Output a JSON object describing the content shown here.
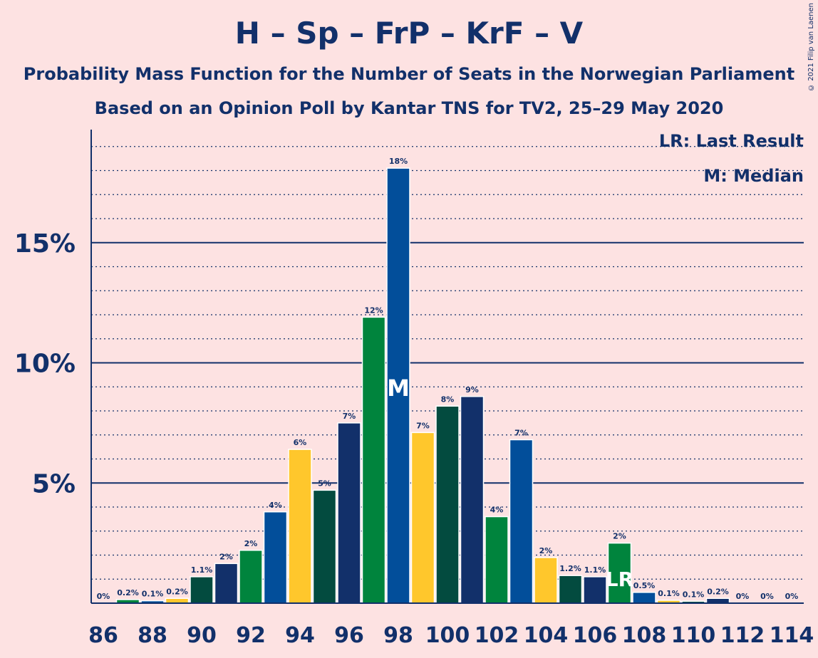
{
  "title": "H – Sp – FrP – KrF – V",
  "subtitle1": "Probability Mass Function for the Number of Seats in the Norwegian Parliament",
  "subtitle2": "Based on an Opinion Poll by Kantar TNS for TV2, 25–29 May 2020",
  "copyright": "© 2021 Filip van Laenen",
  "legend": {
    "last_result": "LR: Last Result",
    "median": "M: Median"
  },
  "colors": {
    "background": "#fde2e2",
    "text": "#12306a",
    "party_colors": [
      "#12306a",
      "#00843d",
      "#024e9a",
      "#ffc72c",
      "#034b3f"
    ]
  },
  "chart_data": {
    "type": "bar",
    "x": [
      86,
      87,
      88,
      89,
      90,
      91,
      92,
      93,
      94,
      95,
      96,
      97,
      98,
      99,
      100,
      101,
      102,
      103,
      104,
      105,
      106,
      107,
      108,
      109,
      110,
      111,
      112,
      113,
      114
    ],
    "values": [
      0,
      0.15,
      0.1,
      0.2,
      1.1,
      1.65,
      2.2,
      3.8,
      6.4,
      4.7,
      7.5,
      11.9,
      18.1,
      7.1,
      8.2,
      8.6,
      3.6,
      6.8,
      1.9,
      1.15,
      1.1,
      2.5,
      0.45,
      0.12,
      0.08,
      0.2,
      0,
      0,
      0
    ],
    "labels": [
      "0%",
      "0.2%",
      "0.1%",
      "0.2%",
      "1.1%",
      "2%",
      "2%",
      "4%",
      "6%",
      "5%",
      "7%",
      "12%",
      "18%",
      "7%",
      "8%",
      "9%",
      "4%",
      "7%",
      "2%",
      "1.2%",
      "1.1%",
      "2%",
      "0.5%",
      "0.1%",
      "0.1%",
      "0.2%",
      "0%",
      "0%",
      "0%"
    ],
    "x_tick_labels": [
      "86",
      "88",
      "90",
      "92",
      "94",
      "96",
      "98",
      "100",
      "102",
      "104",
      "106",
      "108",
      "110",
      "112",
      "114"
    ],
    "y_tick_labels": [
      "5%",
      "10%",
      "15%"
    ],
    "y_ticks": [
      5,
      10,
      15
    ],
    "ylim": [
      0,
      19.8
    ],
    "median_seat": 98,
    "median_marker": "M",
    "last_result_seat": 107,
    "last_result_marker": "LR",
    "grid": true
  }
}
